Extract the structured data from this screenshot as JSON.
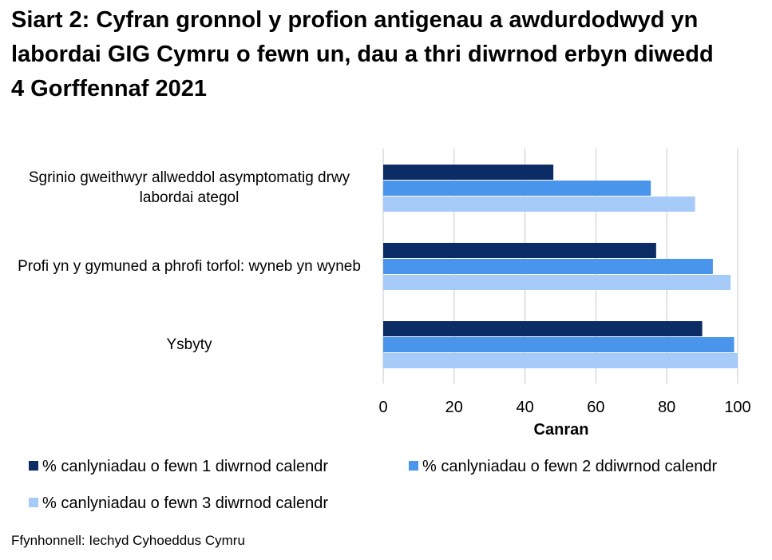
{
  "chart_data": {
    "type": "bar",
    "orientation": "horizontal",
    "title": "Siart 2: Cyfran gronnol y profion antigenau a awdurdodwyd yn labordai GIG Cymru o fewn un, dau a thri diwrnod erbyn diwedd 4 Gorffennaf 2021",
    "categories": [
      "Sgrinio gweithwyr allweddol asymptomatig drwy labordai ategol",
      "Profi yn y gymuned a phrofi torfol: wyneb yn wyneb",
      "Ysbyty"
    ],
    "series": [
      {
        "name": "% canlyniadau o fewn 1 diwrnod calendr",
        "color": "#0b2c64",
        "values": [
          48,
          77,
          90
        ]
      },
      {
        "name": "% canlyniadau o fewn 2 ddiwrnod calendr",
        "color": "#4a95ec",
        "values": [
          75.5,
          93,
          99
        ]
      },
      {
        "name": "% canlyniadau o fewn 3 diwrnod calendr",
        "color": "#a6cbf8",
        "values": [
          88,
          98,
          100
        ]
      }
    ],
    "xlim": [
      0,
      100
    ],
    "xticks": [
      0,
      20,
      40,
      60,
      80,
      100
    ],
    "xlabel": "Canran",
    "grid": true,
    "source": "Ffynhonnell: Iechyd Cyhoeddus Cymru"
  }
}
